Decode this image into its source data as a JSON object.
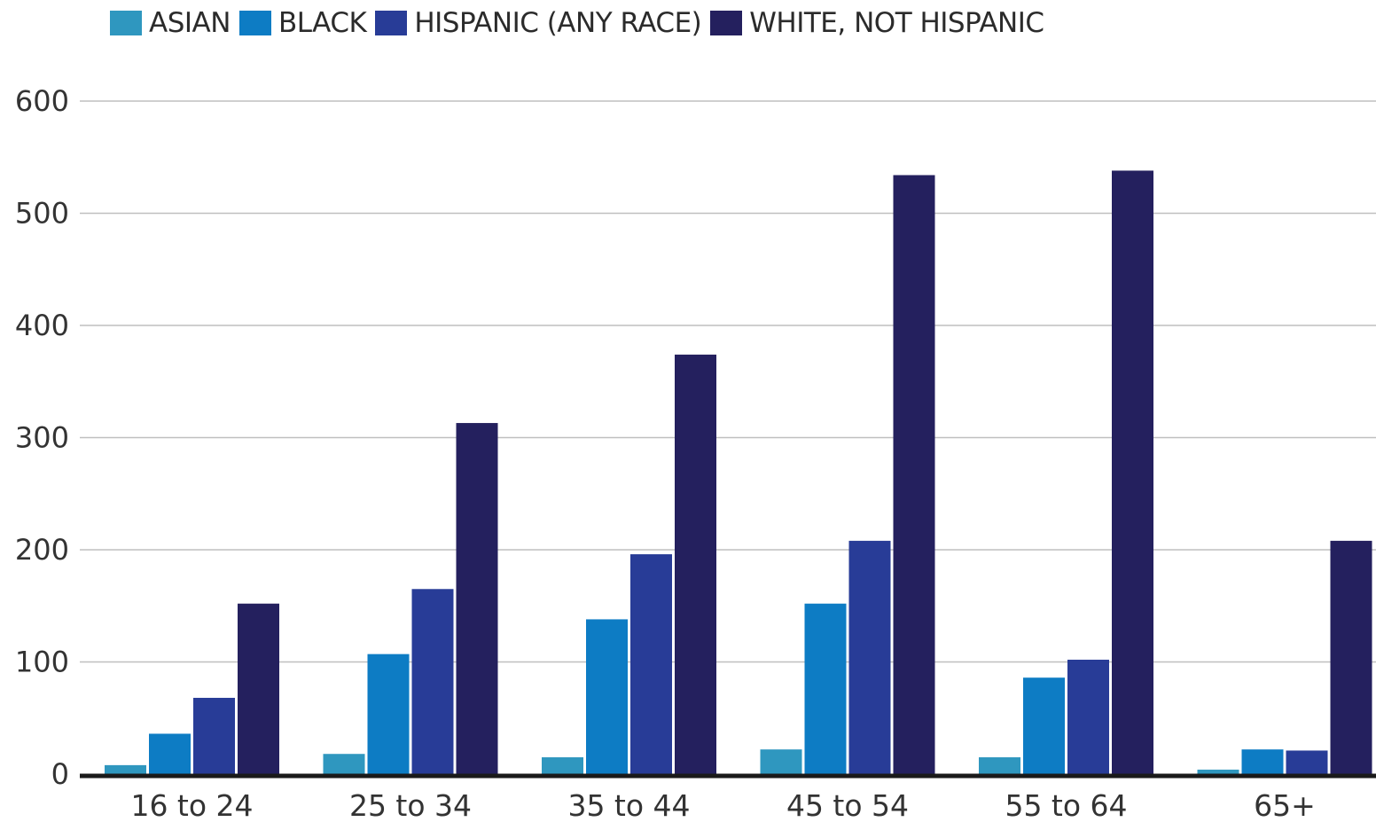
{
  "chart_data": {
    "type": "bar",
    "title": "",
    "xlabel": "",
    "ylabel": "",
    "ylim": [
      0,
      600
    ],
    "yticks": [
      "0",
      "100",
      "200",
      "300",
      "400",
      "500",
      "600"
    ],
    "categories": [
      "16 to 24",
      "25 to 34",
      "35 to 44",
      "45 to 54",
      "55 to 64",
      "65+"
    ],
    "legend_position": "top-left",
    "grid": true,
    "series": [
      {
        "name": "ASIAN",
        "color": "#2f97bf",
        "values": [
          8,
          18,
          15,
          22,
          15,
          4
        ]
      },
      {
        "name": "BLACK",
        "color": "#0d7cc4",
        "values": [
          36,
          107,
          138,
          152,
          86,
          22
        ]
      },
      {
        "name": "HISPANIC (ANY RACE)",
        "color": "#283c97",
        "values": [
          68,
          165,
          196,
          208,
          102,
          21
        ]
      },
      {
        "name": "WHITE, NOT HISPANIC",
        "color": "#24205e",
        "values": [
          152,
          313,
          374,
          534,
          538,
          208
        ]
      }
    ]
  }
}
